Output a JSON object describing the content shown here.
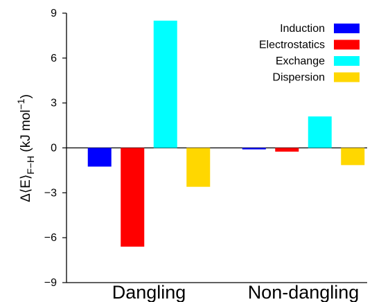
{
  "chart_data": {
    "type": "bar",
    "categories": [
      "Dangling",
      "Non-dangling"
    ],
    "series": [
      {
        "name": "Induction",
        "color": "#0000ff",
        "values": [
          -1.25,
          -0.1
        ]
      },
      {
        "name": "Electrostatics",
        "color": "#ff0000",
        "values": [
          -6.6,
          -0.25
        ]
      },
      {
        "name": "Exchange",
        "color": "#00ffff",
        "values": [
          8.5,
          2.1
        ]
      },
      {
        "name": "Dispersion",
        "color": "#ffd700",
        "values": [
          -2.6,
          -1.15
        ]
      }
    ],
    "yticks": [
      "9",
      "6",
      "3",
      "0",
      "−3",
      "−6",
      "−9"
    ],
    "ylim": [
      -9,
      9
    ],
    "ylabel": {
      "prefix": "Δ⟨E⟩",
      "subscript": "F−H",
      "units_open": " (kJ mol",
      "superscript": "−1",
      "units_close": ")"
    },
    "legend_position": "top-right",
    "grid": false,
    "zero_line": true
  }
}
